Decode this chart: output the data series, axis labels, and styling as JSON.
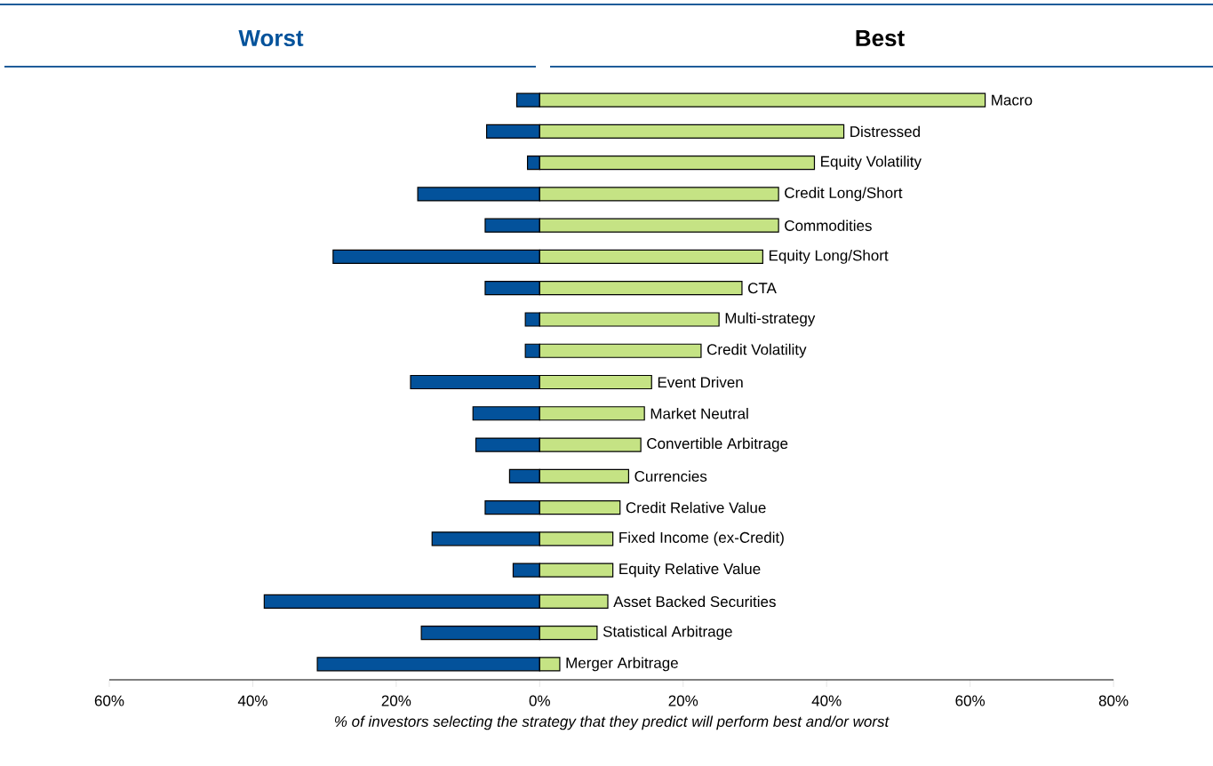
{
  "chart_data": {
    "type": "bar",
    "orientation": "horizontal",
    "stacked": true,
    "categories": [
      "Macro",
      "Distressed",
      "Equity Volatility",
      "Credit Long/Short",
      "Commodities",
      "Equity Long/Short",
      "CTA",
      "Multi-strategy",
      "Credit Volatility",
      "Event Driven",
      "Market Neutral",
      "Convertible Arbitrage",
      "Currencies",
      "Credit Relative Value",
      "Fixed Income (ex-Credit)",
      "Equity Relative Value",
      "Asset Backed Securities",
      "Statistical Arbitrage",
      "Merger Arbitrage"
    ],
    "series": [
      {
        "name": "Worst",
        "color": "#03529b",
        "values": [
          -3.2,
          -7.4,
          -1.7,
          -17.0,
          -7.6,
          -28.8,
          -7.6,
          -2.0,
          -2.0,
          -18.0,
          -9.3,
          -8.9,
          -4.2,
          -7.6,
          -15.0,
          -3.7,
          -38.4,
          -16.5,
          -31.0
        ]
      },
      {
        "name": "Best",
        "color": "#c5e384",
        "values": [
          62.1,
          42.4,
          38.3,
          33.3,
          33.3,
          31.1,
          28.2,
          25.0,
          22.5,
          15.6,
          14.6,
          14.1,
          12.4,
          11.2,
          10.2,
          10.2,
          9.5,
          8.0,
          2.8
        ]
      }
    ],
    "xlim": [
      -60,
      80
    ],
    "xticks": [
      {
        "value": -60,
        "label": "60%"
      },
      {
        "value": -40,
        "label": "40%"
      },
      {
        "value": -20,
        "label": "20%"
      },
      {
        "value": 0,
        "label": "0%"
      },
      {
        "value": 20,
        "label": "20%"
      },
      {
        "value": 40,
        "label": "40%"
      },
      {
        "value": 60,
        "label": "60%"
      },
      {
        "value": 80,
        "label": "80%"
      }
    ],
    "xlabel": "% of investors selecting the strategy that they predict will perform best and/or worst"
  }
}
